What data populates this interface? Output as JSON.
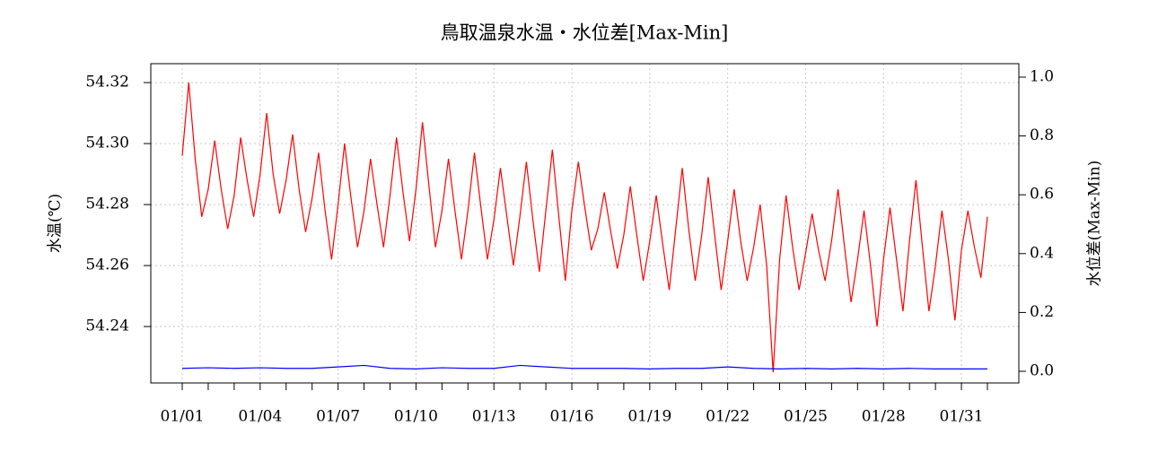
{
  "chart_data": {
    "type": "line",
    "title": "鳥取温泉水温・水位差[Max-Min]",
    "ylabel": "水温(℃)",
    "y2label": "水位差(Max-Min)",
    "xlim": [
      -1.21,
      32.21
    ],
    "xticks": [
      {
        "value": 0,
        "label": "01/01"
      },
      {
        "value": 1,
        "label": null
      },
      {
        "value": 2,
        "label": null
      },
      {
        "value": 3,
        "label": "01/04"
      },
      {
        "value": 4,
        "label": null
      },
      {
        "value": 5,
        "label": null
      },
      {
        "value": 6,
        "label": "01/07"
      },
      {
        "value": 7,
        "label": null
      },
      {
        "value": 8,
        "label": null
      },
      {
        "value": 9,
        "label": "01/10"
      },
      {
        "value": 10,
        "label": null
      },
      {
        "value": 11,
        "label": null
      },
      {
        "value": 12,
        "label": "01/13"
      },
      {
        "value": 13,
        "label": null
      },
      {
        "value": 14,
        "label": null
      },
      {
        "value": 15,
        "label": "01/16"
      },
      {
        "value": 16,
        "label": null
      },
      {
        "value": 17,
        "label": null
      },
      {
        "value": 18,
        "label": "01/19"
      },
      {
        "value": 19,
        "label": null
      },
      {
        "value": 20,
        "label": null
      },
      {
        "value": 21,
        "label": "01/22"
      },
      {
        "value": 22,
        "label": null
      },
      {
        "value": 23,
        "label": null
      },
      {
        "value": 24,
        "label": "01/25"
      },
      {
        "value": 25,
        "label": null
      },
      {
        "value": 26,
        "label": null
      },
      {
        "value": 27,
        "label": "01/28"
      },
      {
        "value": 28,
        "label": null
      },
      {
        "value": 29,
        "label": null
      },
      {
        "value": 30,
        "label": "01/31"
      },
      {
        "value": 31,
        "label": null
      }
    ],
    "ylim": [
      54.2215,
      54.3262
    ],
    "yticks": [
      54.24,
      54.26,
      54.28,
      {
        "value": 54.3,
        "label": "54.30"
      },
      54.32
    ],
    "y2lim": [
      -0.0396,
      1.0457
    ],
    "y2ticks": [
      {
        "value": 0,
        "label": "0.0"
      },
      0.2,
      0.4,
      0.6,
      0.8,
      {
        "value": 1,
        "label": "1.0"
      }
    ],
    "grid": true,
    "series": [
      {
        "color": "#ff0000",
        "axis": "y",
        "x": [
          0,
          0.25,
          0.5,
          0.75,
          1,
          1.25,
          1.5,
          1.75,
          2,
          2.25,
          2.5,
          2.75,
          3,
          3.25,
          3.5,
          3.75,
          4,
          4.25,
          4.5,
          4.75,
          5,
          5.25,
          5.5,
          5.75,
          6,
          6.25,
          6.5,
          6.75,
          7,
          7.25,
          7.5,
          7.75,
          8,
          8.25,
          8.5,
          8.75,
          9,
          9.25,
          9.5,
          9.75,
          10,
          10.25,
          10.5,
          10.75,
          11,
          11.25,
          11.5,
          11.75,
          12,
          12.25,
          12.5,
          12.75,
          13,
          13.25,
          13.5,
          13.75,
          14,
          14.25,
          14.5,
          14.75,
          15,
          15.25,
          15.5,
          15.75,
          16,
          16.25,
          16.5,
          16.75,
          17,
          17.25,
          17.5,
          17.75,
          18,
          18.25,
          18.5,
          18.75,
          19,
          19.25,
          19.5,
          19.75,
          20,
          20.25,
          20.5,
          20.75,
          21,
          21.25,
          21.5,
          21.75,
          22,
          22.25,
          22.5,
          22.75,
          23,
          23.25,
          23.5,
          23.75,
          24,
          24.25,
          24.5,
          24.75,
          25,
          25.25,
          25.5,
          25.75,
          26,
          26.25,
          26.5,
          26.75,
          27,
          27.25,
          27.5,
          27.75,
          28,
          28.25,
          28.5,
          28.75,
          29,
          29.25,
          29.5,
          29.75,
          30,
          30.25,
          30.5,
          30.75,
          31
        ],
        "values": [
          54.296,
          54.32,
          54.295,
          54.276,
          54.285,
          54.301,
          54.285,
          54.272,
          54.283,
          54.302,
          54.288,
          54.276,
          54.29,
          54.31,
          54.29,
          54.277,
          54.288,
          54.303,
          54.285,
          54.271,
          54.282,
          54.297,
          54.278,
          54.262,
          54.28,
          54.3,
          54.282,
          54.266,
          54.278,
          54.295,
          54.28,
          54.266,
          54.283,
          54.302,
          54.284,
          54.268,
          54.285,
          54.307,
          54.286,
          54.266,
          54.278,
          54.295,
          54.278,
          54.262,
          54.278,
          54.297,
          54.279,
          54.262,
          54.275,
          54.292,
          54.276,
          54.26,
          54.276,
          54.294,
          54.275,
          54.258,
          54.278,
          54.298,
          54.276,
          54.255,
          54.278,
          54.294,
          54.279,
          54.265,
          54.272,
          54.284,
          54.271,
          54.259,
          54.27,
          54.286,
          54.27,
          54.255,
          54.268,
          54.283,
          54.267,
          54.252,
          54.272,
          54.292,
          54.272,
          54.255,
          54.27,
          54.289,
          54.27,
          54.252,
          54.268,
          54.285,
          54.268,
          54.255,
          54.266,
          54.28,
          54.26,
          54.225,
          54.262,
          54.283,
          54.266,
          54.252,
          54.264,
          54.277,
          54.265,
          54.255,
          54.268,
          54.285,
          54.266,
          54.248,
          54.262,
          54.278,
          54.26,
          54.24,
          54.262,
          54.279,
          54.262,
          54.245,
          54.268,
          54.288,
          54.266,
          54.245,
          54.26,
          54.278,
          54.262,
          54.242,
          54.265,
          54.278,
          54.266,
          54.256,
          54.276
        ]
      },
      {
        "color": "#0000ff",
        "axis": "y2",
        "x": [
          0,
          1,
          2,
          3,
          4,
          5,
          6,
          7,
          8,
          9,
          10,
          11,
          12,
          13,
          14,
          15,
          16,
          17,
          18,
          19,
          20,
          21,
          22,
          23,
          24,
          25,
          26,
          27,
          28,
          29,
          30,
          31
        ],
        "values": [
          0.01,
          0.012,
          0.01,
          0.012,
          0.01,
          0.01,
          0.015,
          0.02,
          0.01,
          0.008,
          0.012,
          0.01,
          0.01,
          0.02,
          0.015,
          0.01,
          0.01,
          0.01,
          0.008,
          0.01,
          0.01,
          0.015,
          0.01,
          0.008,
          0.01,
          0.008,
          0.01,
          0.008,
          0.01,
          0.008,
          0.008,
          0.008
        ]
      }
    ]
  }
}
